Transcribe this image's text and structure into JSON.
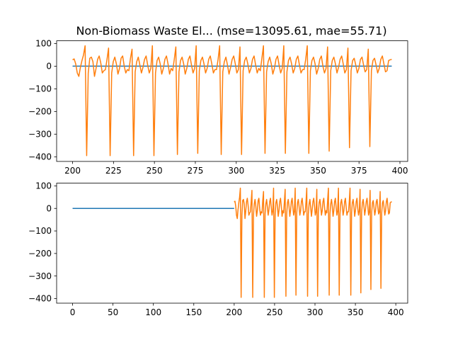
{
  "chart_data": [
    {
      "type": "line",
      "title": "Non-Biomass Waste El... (mse=13095.61, mae=55.71)",
      "xlim": [
        190.25,
        404.75
      ],
      "ylim": [
        -420.5,
        112
      ],
      "xticks": [
        200,
        225,
        250,
        275,
        300,
        325,
        350,
        375,
        400
      ],
      "yticks": [
        100,
        0,
        -100,
        -200,
        -300,
        -400
      ],
      "grid": false,
      "series": [
        {
          "color": "#1f77b4",
          "x_start": 200,
          "x_end": 395,
          "values_constant": 0
        },
        {
          "color": "#ff7f0e",
          "x_start": 200,
          "x_end": 395,
          "values": [
            28,
            32,
            10,
            -30,
            -45,
            -5,
            25,
            50,
            90,
            -395,
            -30,
            35,
            40,
            20,
            -45,
            -10,
            30,
            45,
            15,
            -30,
            -20,
            -15,
            30,
            80,
            -395,
            -30,
            20,
            40,
            10,
            -35,
            -10,
            35,
            45,
            0,
            -30,
            -15,
            -20,
            35,
            75,
            -395,
            -25,
            20,
            40,
            5,
            -30,
            -5,
            30,
            45,
            5,
            -30,
            -10,
            90,
            -395,
            -30,
            25,
            40,
            10,
            -35,
            -10,
            30,
            45,
            10,
            -35,
            -10,
            -20,
            30,
            85,
            -390,
            -25,
            25,
            40,
            10,
            -35,
            -10,
            30,
            45,
            5,
            -30,
            -10,
            90,
            -385,
            -20,
            25,
            40,
            10,
            -30,
            -10,
            30,
            45,
            10,
            -30,
            -15,
            -15,
            30,
            90,
            -390,
            -25,
            20,
            40,
            5,
            -35,
            -5,
            30,
            45,
            10,
            -30,
            -15,
            85,
            -390,
            -20,
            25,
            40,
            10,
            -30,
            -10,
            30,
            45,
            5,
            -30,
            -10,
            -20,
            35,
            90,
            -385,
            -25,
            20,
            40,
            10,
            -35,
            -10,
            30,
            45,
            5,
            -30,
            -10,
            90,
            -385,
            -25,
            25,
            40,
            10,
            -30,
            -10,
            30,
            45,
            5,
            -30,
            -15,
            -15,
            30,
            90,
            -385,
            -20,
            25,
            40,
            10,
            -35,
            -10,
            30,
            45,
            0,
            -30,
            -10,
            85,
            -375,
            -20,
            25,
            40,
            10,
            -30,
            -5,
            30,
            45,
            10,
            -30,
            -15,
            80,
            -360,
            -20,
            25,
            35,
            5,
            -30,
            -10,
            30,
            40,
            5,
            -25,
            -15,
            75,
            -355,
            -20,
            25,
            35,
            5,
            -30,
            -10,
            30,
            45,
            10,
            -25,
            -20,
            25,
            28,
            30
          ]
        }
      ]
    },
    {
      "type": "line",
      "xlim": [
        -19.75,
        414.75
      ],
      "ylim": [
        -420.5,
        112
      ],
      "xticks": [
        0,
        50,
        100,
        150,
        200,
        250,
        300,
        350,
        400
      ],
      "yticks": [
        100,
        0,
        -100,
        -200,
        -300,
        -400
      ],
      "grid": false,
      "series": [
        {
          "color": "#1f77b4",
          "x_start": 0,
          "x_end": 200,
          "values_constant": 0
        },
        {
          "color": "#ff7f0e",
          "x_start": 200,
          "x_end": 395,
          "same_as_top": true
        }
      ]
    }
  ]
}
